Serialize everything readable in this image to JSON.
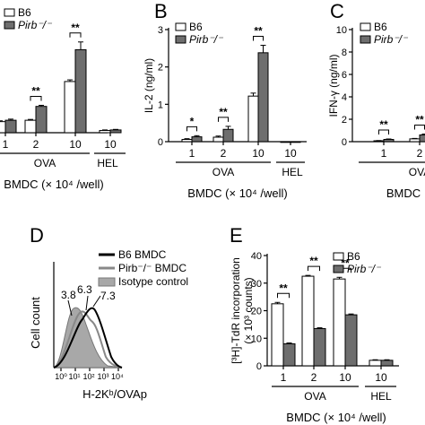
{
  "figure": {
    "panel_labels": [
      "B",
      "C",
      "D",
      "E"
    ]
  },
  "chart_data": [
    {
      "panel": "A",
      "type": "bar",
      "legend": [
        "B6",
        "Pirb⁻/⁻"
      ],
      "categories": [
        "1",
        "2",
        "10",
        "10"
      ],
      "groups": [
        "OVA",
        "HEL"
      ],
      "xlabel": "BMDC (× 10⁴ /well)",
      "series": [
        {
          "name": "B6",
          "values": [
            0.4,
            0.45,
            1.85,
            0.08
          ],
          "errors": [
            0.03,
            0.03,
            0.06,
            0.02
          ]
        },
        {
          "name": "Pirb⁻/⁻",
          "values": [
            0.45,
            0.95,
            3.0,
            0.1
          ],
          "errors": [
            0.04,
            0.04,
            0.28,
            0.02
          ]
        }
      ],
      "significance": [
        "",
        "**",
        "**",
        ""
      ]
    },
    {
      "panel": "B",
      "type": "bar",
      "legend": [
        "B6",
        "Pirb⁻/⁻"
      ],
      "ylabel": "IL-2 (ng/ml)",
      "ylim": [
        0,
        3
      ],
      "yticks": [
        "0",
        "1",
        "2",
        "3"
      ],
      "categories": [
        "1",
        "2",
        "10",
        "10"
      ],
      "groups": [
        "OVA",
        "HEL"
      ],
      "xlabel": "BMDC (× 10⁴ /well)",
      "series": [
        {
          "name": "B6",
          "values": [
            0.06,
            0.12,
            1.22,
            0.0
          ],
          "errors": [
            0.02,
            0.03,
            0.08,
            0.0
          ]
        },
        {
          "name": "Pirb⁻/⁻",
          "values": [
            0.13,
            0.33,
            2.38,
            0.0
          ],
          "errors": [
            0.03,
            0.08,
            0.2,
            0.0
          ]
        }
      ],
      "significance": [
        "*",
        "**",
        "**",
        ""
      ]
    },
    {
      "panel": "C",
      "type": "bar",
      "legend": [
        "B6",
        "Pirb⁻/⁻"
      ],
      "ylabel": "IFN-γ (ng/ml)",
      "ylim": [
        0,
        10
      ],
      "yticks": [
        "0",
        "2",
        "4",
        "6",
        "8",
        "10"
      ],
      "categories": [
        "1",
        "2"
      ],
      "groups": [
        "OVA"
      ],
      "group_label_visible": "OVA",
      "xlabel": "BMDC",
      "series": [
        {
          "name": "B6",
          "values": [
            0.08,
            0.25
          ],
          "errors": [
            0.02,
            0.04
          ]
        },
        {
          "name": "Pirb⁻/⁻",
          "values": [
            0.2,
            0.6
          ],
          "errors": [
            0.04,
            0.08
          ]
        }
      ],
      "significance": [
        "**",
        "**"
      ]
    },
    {
      "panel": "D",
      "type": "histogram",
      "xlabel": "H-2Kᵇ/OVAp",
      "ylabel": "Cell count",
      "xticks": [
        "10⁰",
        "10¹",
        "10²",
        "10³",
        "10⁴"
      ],
      "legend": [
        "B6 BMDC",
        "Pirb⁻/⁻ BMDC",
        "Isotype control"
      ],
      "annotations": [
        "3.8",
        "6.3",
        "7.3"
      ]
    },
    {
      "panel": "E",
      "type": "bar",
      "legend": [
        "B6",
        "Pirb⁻/⁻"
      ],
      "ylabel": "[³H]-TdR incorporation",
      "ylabel2": "(× 10³ counts)",
      "ylim": [
        0,
        40
      ],
      "yticks": [
        "0",
        "10",
        "20",
        "30",
        "40"
      ],
      "categories": [
        "1",
        "2",
        "10",
        "10"
      ],
      "groups": [
        "OVA",
        "HEL"
      ],
      "xlabel": "BMDC (× 10⁴ /well)",
      "series": [
        {
          "name": "B6",
          "values": [
            22.5,
            32.5,
            31.5,
            2.0
          ],
          "errors": [
            0.5,
            0.3,
            0.6,
            0.2
          ]
        },
        {
          "name": "Pirb⁻/⁻",
          "values": [
            8.0,
            13.5,
            18.5,
            2.0
          ],
          "errors": [
            0.3,
            0.3,
            0.3,
            0.2
          ]
        }
      ],
      "significance": [
        "**",
        "**",
        "**",
        ""
      ]
    }
  ]
}
